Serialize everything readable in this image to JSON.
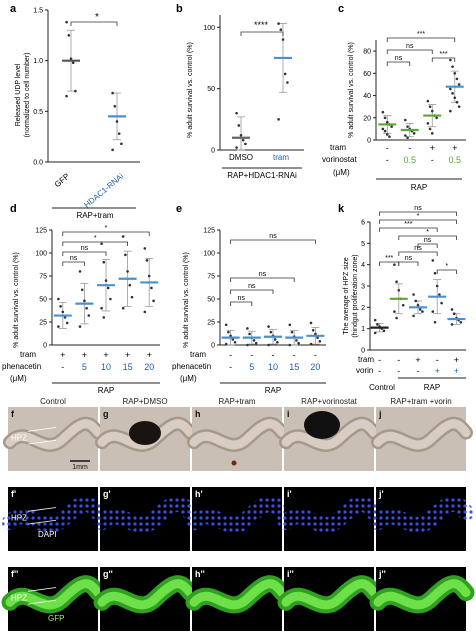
{
  "figure": {
    "colors": {
      "accent": "#1f5fa8",
      "mean": "#4a90d0",
      "green_mean": "#5aa832",
      "axis": "#222222",
      "point": "#333333",
      "bracket": "#333333"
    },
    "a": {
      "letter": "a",
      "ylabel_lines": [
        "Released UDP level",
        "(normalized to cell number)"
      ],
      "yticks": [
        "0.0",
        "0.5",
        "1.0",
        "1.5"
      ],
      "categories": [
        "GFP",
        "HDAC1-RNAi"
      ],
      "sig": "*",
      "group_label": "RAP+tram"
    },
    "b": {
      "letter": "b",
      "ylabel": "% adult survival vs. control (%)",
      "yticks": [
        "0",
        "50",
        "100"
      ],
      "categories": [
        "DMSO",
        "tram"
      ],
      "sig": "****",
      "group_label": "RAP+HDAC1-RNAi"
    },
    "c": {
      "letter": "c",
      "ylabel": "% adult survival vs. control (%)",
      "yticks": [
        "0",
        "20",
        "40",
        "60",
        "80"
      ],
      "row1_label": "tram",
      "row1": [
        "-",
        "-",
        "+",
        "+"
      ],
      "row2_label": "vorinostat",
      "row2": [
        "-",
        "0.5",
        "-",
        "0.5"
      ],
      "unit": "(μM)",
      "sigs": [
        "ns",
        "ns",
        "***",
        "***"
      ],
      "group_label": "RAP"
    },
    "d": {
      "letter": "d",
      "ylabel": "% adult survival vs. control (%)",
      "yticks": [
        "0",
        "25",
        "50",
        "75",
        "100",
        "125"
      ],
      "row1_label": "tram",
      "row1": [
        "+",
        "+",
        "+",
        "+",
        "+"
      ],
      "row2_label": "phenacetin",
      "row2": [
        "-",
        "5",
        "10",
        "15",
        "20"
      ],
      "unit": "(μM)",
      "sigs": [
        "ns",
        "ns",
        "*",
        "*"
      ],
      "group_label": "RAP"
    },
    "e": {
      "letter": "e",
      "ylabel": "% adult survival vs. control (%)",
      "yticks": [
        "0",
        "25",
        "50",
        "75",
        "100",
        "125"
      ],
      "row1_label": "tram",
      "row1": [
        "-",
        "-",
        "-",
        "-",
        "-"
      ],
      "row2_label": "phenacetin",
      "row2": [
        "-",
        "5",
        "10",
        "15",
        "20"
      ],
      "unit": "(μM)",
      "sigs": [
        "ns",
        "ns",
        "ns",
        "ns"
      ],
      "group_label": "RAP"
    },
    "k": {
      "letter": "k",
      "ylabel_lines": [
        "The average of HPZ size",
        "(hindgut proliferation zone)"
      ],
      "yticks": [
        "0",
        "1",
        "2",
        "3",
        "4",
        "5",
        "6"
      ],
      "row1_label": "tram",
      "row1": [
        "-",
        "-",
        "+",
        "-",
        "+"
      ],
      "row2_label": "vorin",
      "row2": [
        "-",
        "-",
        "-",
        "+",
        "+"
      ],
      "group_labels": [
        "Control",
        "RAP"
      ],
      "sigs": [
        "***",
        "ns",
        "*",
        "ns",
        "ns",
        "*",
        "***",
        "*",
        "ns"
      ]
    },
    "images": {
      "col_titles": [
        "Control",
        "RAP+DMSO",
        "RAP+tram",
        "RAP+vorinostat",
        "RAP+tram +vorin"
      ],
      "row1_letters": [
        "f",
        "g",
        "h",
        "i",
        "j"
      ],
      "row2_letters": [
        "f'",
        "g'",
        "h'",
        "i'",
        "j'"
      ],
      "row3_letters": [
        "f''",
        "g''",
        "h''",
        "i''",
        "j''"
      ],
      "hpz": "HPZ",
      "scale": "1mm",
      "dapi": "DAPI",
      "gfp": "GFP"
    }
  },
  "chart_data": [
    {
      "type": "scatter",
      "panel": "a",
      "categories": [
        "GFP",
        "HDAC1-RNAi"
      ],
      "means": [
        1.0,
        0.45
      ],
      "sd": [
        0.3,
        0.23
      ],
      "points": [
        [
          1.38,
          1.25,
          1.02,
          0.98,
          0.7,
          0.65
        ],
        [
          0.68,
          0.55,
          0.4,
          0.28,
          0.18,
          0.12
        ]
      ],
      "ylim": [
        0,
        1.5
      ],
      "ylabel": "Released UDP level (normalized to cell number)"
    },
    {
      "type": "scatter",
      "panel": "b",
      "categories": [
        "DMSO",
        "tram"
      ],
      "means": [
        10,
        75
      ],
      "sd": [
        17,
        28
      ],
      "points": [
        [
          30,
          20,
          12,
          8,
          5,
          2
        ],
        [
          103,
          98,
          90,
          62,
          55,
          25
        ]
      ],
      "ylim": [
        0,
        110
      ],
      "ylabel": "% adult survival vs. control (%)"
    },
    {
      "type": "scatter",
      "panel": "c",
      "categories": [
        "tram- vorinostat-",
        "tram- vorinostat 0.5",
        "tram+ vorinostat-",
        "tram+ vorinostat 0.5"
      ],
      "means": [
        14,
        9,
        22,
        48
      ],
      "sd": [
        8,
        6,
        10,
        14
      ],
      "points": [
        [
          25,
          20,
          16,
          14,
          12,
          10,
          8,
          5,
          3
        ],
        [
          18,
          12,
          10,
          8,
          6,
          4,
          2
        ],
        [
          35,
          30,
          26,
          22,
          20,
          15,
          10,
          6
        ],
        [
          72,
          66,
          60,
          55,
          50,
          46,
          42,
          38,
          34,
          30,
          26
        ]
      ],
      "ylim": [
        0,
        90
      ],
      "ylabel": "% adult survival vs. control (%)"
    },
    {
      "type": "scatter",
      "panel": "d",
      "categories": [
        "tram+ phenacetin-",
        "5",
        "10",
        "15",
        "20"
      ],
      "means": [
        32,
        45,
        65,
        72,
        68
      ],
      "sd": [
        14,
        22,
        28,
        30,
        26
      ],
      "points": [
        [
          50,
          42,
          36,
          30,
          24,
          20
        ],
        [
          80,
          60,
          48,
          40,
          32,
          20
        ],
        [
          110,
          90,
          70,
          62,
          50,
          40,
          30
        ],
        [
          118,
          98,
          80,
          65,
          52,
          40
        ],
        [
          105,
          92,
          75,
          62,
          48,
          36
        ]
      ],
      "ylim": [
        0,
        125
      ],
      "ylabel": "% adult survival vs. control (%)"
    },
    {
      "type": "scatter",
      "panel": "e",
      "categories": [
        "tram- phenacetin-",
        "5",
        "10",
        "15",
        "20"
      ],
      "means": [
        8,
        8,
        9,
        8,
        10
      ],
      "sd": [
        8,
        7,
        8,
        8,
        9
      ],
      "points": [
        [
          22,
          14,
          10,
          6,
          3,
          1
        ],
        [
          18,
          12,
          8,
          5,
          2,
          0
        ],
        [
          20,
          14,
          10,
          6,
          3,
          0
        ],
        [
          22,
          14,
          9,
          5,
          2,
          0
        ],
        [
          24,
          16,
          12,
          8,
          4,
          1
        ]
      ],
      "ylim": [
        0,
        125
      ],
      "ylabel": "% adult survival vs. control (%)"
    },
    {
      "type": "scatter",
      "panel": "k",
      "categories": [
        "Control",
        "RAP",
        "RAP+tram",
        "RAP+vorin",
        "RAP+tram+vorin"
      ],
      "means": [
        1.05,
        2.4,
        2.0,
        2.5,
        1.45
      ],
      "sd": [
        0.2,
        0.7,
        0.3,
        0.8,
        0.25
      ],
      "points": [
        [
          1.4,
          1.2,
          1.1,
          1.0,
          0.9,
          0.8
        ],
        [
          4.0,
          3.2,
          2.8,
          2.4,
          2.1,
          1.8,
          1.5
        ],
        [
          2.6,
          2.3,
          2.1,
          1.9,
          1.8,
          1.6
        ],
        [
          4.2,
          3.6,
          3.0,
          2.6,
          2.2,
          1.8,
          1.3
        ],
        [
          1.9,
          1.7,
          1.5,
          1.4,
          1.3,
          1.2
        ]
      ],
      "ylim": [
        0,
        6
      ],
      "ylabel": "The average of HPZ size (hindgut proliferation zone)"
    }
  ]
}
